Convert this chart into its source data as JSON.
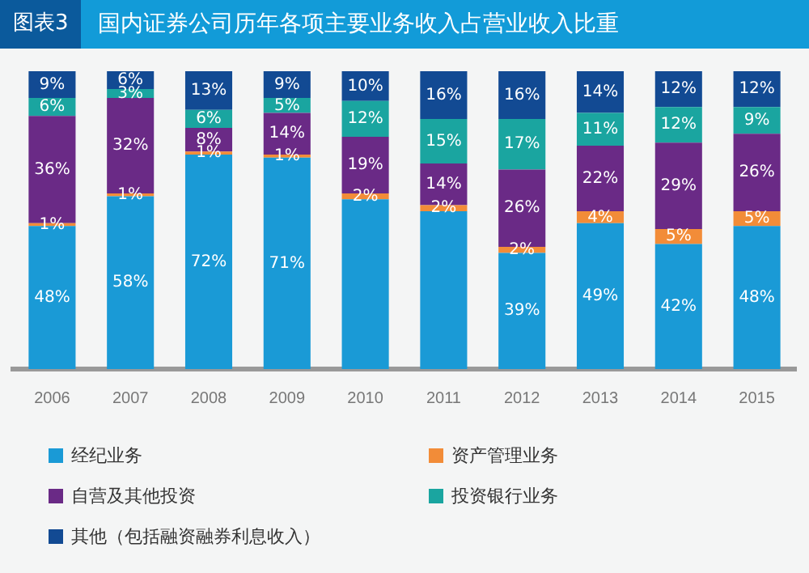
{
  "chart_data": {
    "type": "bar",
    "stacked": true,
    "title": "国内证券公司历年各项主要业务收入占营业收入比重",
    "annotations": [
      "图表3"
    ],
    "categories": [
      "2006",
      "2007",
      "2008",
      "2009",
      "2010",
      "2011",
      "2012",
      "2013",
      "2014",
      "2015"
    ],
    "series": [
      {
        "name": "经纪业务",
        "color": "#1a9ad6",
        "values": [
          48,
          58,
          72,
          71,
          57,
          53,
          39,
          49,
          42,
          48
        ],
        "value_labels": [
          "48%",
          "58%",
          "72%",
          "71%",
          null,
          null,
          "39%",
          "49%",
          "42%",
          "48%"
        ]
      },
      {
        "name": "资产管理业务",
        "color": "#f28c38",
        "values": [
          1,
          1,
          1,
          1,
          2,
          2,
          2,
          4,
          5,
          5
        ],
        "value_labels": [
          "1%",
          "1%",
          "1%",
          "1%",
          "2%",
          "2%",
          "2%",
          "4%",
          "5%",
          "5%"
        ]
      },
      {
        "name": "自营及其他投资",
        "color": "#6a2a86",
        "values": [
          36,
          32,
          8,
          14,
          19,
          14,
          26,
          22,
          29,
          26
        ],
        "value_labels": [
          "36%",
          "32%",
          "8%",
          "14%",
          "19%",
          "14%",
          "26%",
          "22%",
          "29%",
          "26%"
        ]
      },
      {
        "name": "投资银行业务",
        "color": "#1aa5a0",
        "values": [
          6,
          3,
          6,
          5,
          12,
          15,
          17,
          11,
          12,
          9
        ],
        "value_labels": [
          "6%",
          "3%",
          "6%",
          "5%",
          "12%",
          "15%",
          "17%",
          "11%",
          "12%",
          "9%"
        ]
      },
      {
        "name": "其他（包括融资融券利息收入）",
        "color": "#124a93",
        "values": [
          9,
          6,
          13,
          9,
          10,
          16,
          16,
          14,
          12,
          12
        ],
        "value_labels": [
          "9%",
          "6%",
          "13%",
          "9%",
          "10%",
          "16%",
          "16%",
          "14%",
          "12%",
          "12%"
        ]
      }
    ],
    "legend": "bottom",
    "grid": false
  }
}
